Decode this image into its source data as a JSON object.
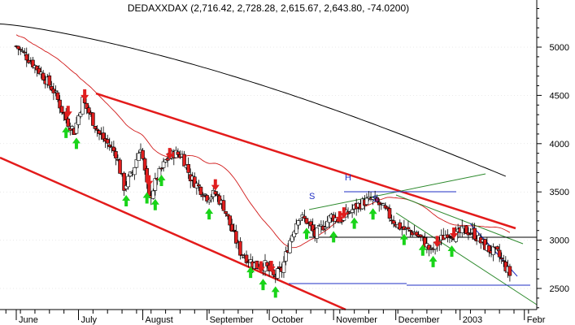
{
  "title": "DEDAXXDAX (2,716.42, 2,728.28, 2,615.67, 2,643.80, -74.0200)",
  "colors": {
    "bull_candle": "#ffffff",
    "bear_candle": "#e01e1e",
    "candle_outline": "#000000",
    "ma_short": "#d11a1a",
    "ma_long": "#000000",
    "trend_red": "#e31b1b",
    "trend_green": "#2d8a2d",
    "trend_blue": "#1f2fc4",
    "trend_black": "#000000",
    "buy_arrow": "#19d419",
    "sell_arrow": "#e01e1e",
    "grid": "#cccccc"
  },
  "chart_data": {
    "type": "candlestick",
    "title": "DEDAXXDAX (2,716.42, 2,728.28, 2,615.67, 2,643.80, -74.0200)",
    "y_axis": {
      "position": "right",
      "min": 2250,
      "max": 5500,
      "tick_labels": [
        "2500",
        "3000",
        "3500",
        "4000",
        "4500",
        "5000"
      ]
    },
    "x_axis": {
      "start_day": 0,
      "end_day": 270,
      "tick_labels": [
        "June",
        "July",
        "August",
        "September",
        "October",
        "November",
        "December",
        "2003",
        "Febr"
      ],
      "tick_days": [
        0,
        30,
        61,
        92,
        122,
        153,
        183,
        214,
        245
      ]
    },
    "pattern_labels": [
      "S",
      "H",
      "S"
    ],
    "annotations": {
      "buy_arrow_days": [
        24,
        29,
        53,
        63,
        67,
        70,
        93,
        113,
        119,
        125,
        140,
        153,
        163,
        172,
        187,
        196,
        201,
        210
      ],
      "sell_arrow_days": [
        25,
        33,
        64,
        74,
        96,
        118,
        123,
        156,
        158,
        203,
        211
      ]
    }
  }
}
